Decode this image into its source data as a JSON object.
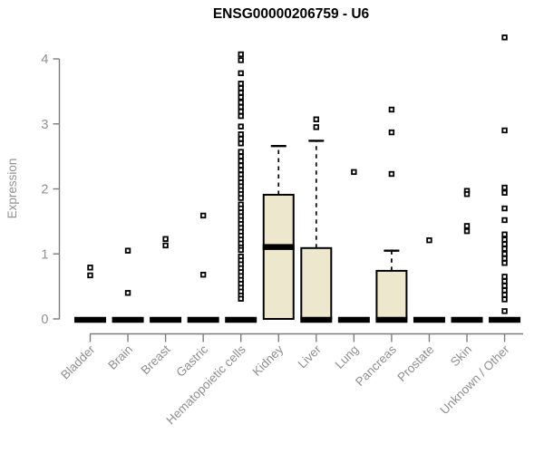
{
  "chart_data": {
    "type": "boxplot",
    "title": "ENSG00000206759 - U6",
    "ylabel": "Expression",
    "xlabel": "",
    "ylim": [
      0,
      4.35
    ],
    "yticks": [
      0,
      1,
      2,
      3,
      4
    ],
    "grid": false,
    "legend": false,
    "colors": {
      "box_fill": "#ece7cd",
      "box_stroke": "#000000",
      "axis_line": "#7d7d7d",
      "axis_text": "#8f8f8f",
      "title_text": "#000000",
      "background": "#ffffff"
    },
    "categories": [
      {
        "label": "Bladder",
        "q1": 0,
        "median": 0,
        "q3": 0,
        "whisker_low": 0,
        "whisker_high": 0,
        "outliers": [
          0.79,
          0.67
        ]
      },
      {
        "label": "Brain",
        "q1": 0,
        "median": 0,
        "q3": 0,
        "whisker_low": 0,
        "whisker_high": 0,
        "outliers": [
          1.05,
          0.4
        ]
      },
      {
        "label": "Breast",
        "q1": 0,
        "median": 0,
        "q3": 0,
        "whisker_low": 0,
        "whisker_high": 0,
        "outliers": [
          1.23,
          1.13
        ]
      },
      {
        "label": "Gastric",
        "q1": 0,
        "median": 0,
        "q3": 0,
        "whisker_low": 0,
        "whisker_high": 0,
        "outliers": [
          1.59,
          0.68
        ]
      },
      {
        "label": "Hematopoietic cells",
        "q1": 0,
        "median": 0,
        "q3": 0,
        "whisker_low": 0,
        "whisker_high": 0,
        "outliers": [
          4.07,
          3.98,
          3.78,
          3.62,
          3.55,
          3.48,
          3.41,
          3.33,
          3.26,
          3.19,
          3.12,
          2.96,
          2.84,
          2.77,
          2.7,
          2.57,
          2.5,
          2.43,
          2.36,
          2.29,
          2.22,
          2.16,
          2.1,
          2.04,
          1.98,
          1.92,
          1.86,
          1.76,
          1.7,
          1.64,
          1.58,
          1.52,
          1.46,
          1.4,
          1.34,
          1.28,
          1.22,
          1.16,
          1.1,
          1.06,
          0.96,
          0.9,
          0.84,
          0.78,
          0.72,
          0.66,
          0.6,
          0.54,
          0.48,
          0.42,
          0.36,
          0.31
        ]
      },
      {
        "label": "Kidney",
        "q1": 0,
        "median": 1.12,
        "q3": 1.91,
        "whisker_low": 0,
        "whisker_high": 2.66,
        "outliers": []
      },
      {
        "label": "Liver",
        "q1": 0,
        "median": 0,
        "q3": 1.09,
        "whisker_low": 0,
        "whisker_high": 2.74,
        "outliers": [
          3.07,
          2.95
        ]
      },
      {
        "label": "Lung",
        "q1": 0,
        "median": 0,
        "q3": 0,
        "whisker_low": 0,
        "whisker_high": 0,
        "outliers": [
          2.26
        ]
      },
      {
        "label": "Pancreas",
        "q1": 0,
        "median": 0,
        "q3": 0.74,
        "whisker_low": 0,
        "whisker_high": 1.05,
        "outliers": [
          3.22,
          2.87,
          2.23
        ]
      },
      {
        "label": "Prostate",
        "q1": 0,
        "median": 0,
        "q3": 0,
        "whisker_low": 0,
        "whisker_high": 0,
        "outliers": [
          1.21
        ]
      },
      {
        "label": "Skin",
        "q1": 0,
        "median": 0,
        "q3": 0,
        "whisker_low": 0,
        "whisker_high": 0,
        "outliers": [
          1.97,
          1.92,
          1.43,
          1.35
        ]
      },
      {
        "label": "Unknown / Other",
        "q1": 0,
        "median": 0,
        "q3": 0,
        "whisker_low": 0,
        "whisker_high": 0,
        "outliers": [
          4.33,
          2.9,
          2.02,
          1.94,
          1.7,
          1.52,
          1.3,
          1.22,
          1.15,
          1.08,
          1.0,
          0.93,
          0.86,
          0.65,
          0.58,
          0.51,
          0.44,
          0.37,
          0.3,
          0.12
        ]
      }
    ]
  }
}
